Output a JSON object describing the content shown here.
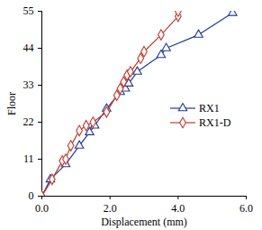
{
  "chart_data": {
    "type": "line",
    "x_label": "Displacement (mm)",
    "y_label": "Floor",
    "xlim": [
      0,
      6
    ],
    "xticks": [
      0,
      2,
      4,
      6
    ],
    "ylim": [
      0,
      55
    ],
    "yticks": [
      0,
      11,
      22,
      33,
      44,
      55
    ],
    "grid": false,
    "legend": "right",
    "series": [
      {
        "name": "RX1",
        "color": "#1f3a93",
        "marker": "triangle",
        "line_style": "solid",
        "x": [
          0,
          0.25,
          0.7,
          1.1,
          1.4,
          1.55,
          1.9,
          2.3,
          2.45,
          2.55,
          2.8,
          3.5,
          3.65,
          4.6,
          5.6
        ],
        "values": [
          0,
          5,
          9.5,
          15,
          19,
          21,
          26,
          31,
          32,
          33.5,
          37,
          42,
          44,
          48,
          54.5
        ]
      },
      {
        "name": "RX1-D",
        "color": "#c0392b",
        "marker": "diamond",
        "line_style": "solid",
        "x": [
          0,
          0.3,
          0.6,
          0.7,
          0.85,
          1.1,
          1.3,
          1.5,
          1.9,
          2.2,
          2.3,
          2.4,
          2.5,
          2.6,
          2.9,
          3.0,
          3.5,
          4.0,
          4.0
        ],
        "values": [
          0,
          5,
          10.5,
          11,
          15,
          19.5,
          21,
          22,
          25,
          30,
          32,
          34,
          36,
          37,
          41,
          43,
          48,
          53.5,
          55
        ]
      }
    ]
  }
}
